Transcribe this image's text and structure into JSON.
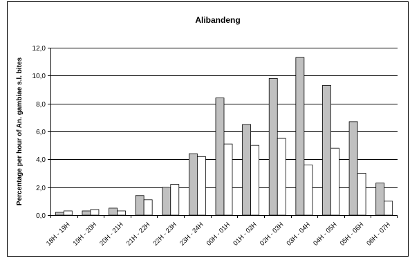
{
  "chart_data": {
    "type": "bar",
    "title": "Alibandeng",
    "xlabel": "",
    "ylabel": "Percentage per hour of An. gambiae s.l. bites",
    "ylim": [
      0,
      12
    ],
    "yticks": [
      "0,0",
      "2,0",
      "4,0",
      "6,0",
      "8,0",
      "10,0",
      "12,0"
    ],
    "grid": true,
    "legend": "none",
    "categories": [
      "18H - 19H",
      "19H - 20H",
      "20H - 21H",
      "21H - 22H",
      "22H - 23H",
      "23H - 24H",
      "00H - 01H",
      "01H - 02H",
      "02H - 03H",
      "03H - 04H",
      "04H - 05H",
      "05H - 06H",
      "06H - 07H"
    ],
    "series": [
      {
        "values": [
          0.2,
          0.3,
          0.5,
          1.4,
          2.0,
          4.4,
          8.4,
          6.5,
          9.8,
          11.3,
          9.3,
          6.7,
          2.3
        ],
        "color": "#c0c0c0"
      },
      {
        "values": [
          0.3,
          0.4,
          0.3,
          1.1,
          2.2,
          4.2,
          5.1,
          5.0,
          5.5,
          3.6,
          4.8,
          3.0,
          1.0
        ],
        "color": "#ffffff"
      }
    ]
  }
}
